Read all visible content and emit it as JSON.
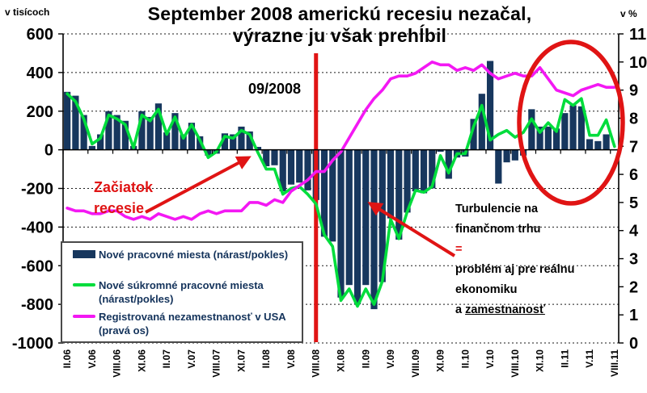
{
  "header": {
    "title_line1": "September 2008 americkú recesiu nezačal,",
    "title_line2": "výrazne ju však prehĺbil"
  },
  "axis_units": {
    "left": "v tisícoch",
    "right": "v %"
  },
  "legend": {
    "items": [
      {
        "label": "Nové pracovné miesta (nárast/pokles)",
        "swatch": "bar",
        "color": "#17375e"
      },
      {
        "label": "Nové súkromné pracovné miesta (nárast/pokles)",
        "swatch": "line",
        "color": "#00dd3c"
      },
      {
        "label": "Registrovaná nezamestnanosť v USA (pravá os)",
        "swatch": "line",
        "color": "#f318f3"
      }
    ]
  },
  "annotations": {
    "event_date": "09/2008",
    "recession_start": "Začiatok recesie",
    "turbulence_line1": "Turbulencie na",
    "turbulence_line2": "finančnom trhu",
    "equals_sign": "=",
    "impact_line1": "problém aj pre reálnu",
    "impact_line2": "ekonomiku",
    "impact_line3_prefix": "a ",
    "impact_line3_underlined": "zamestnanosť"
  },
  "colors": {
    "bar_navy": "#17375e",
    "private_green": "#00dd3c",
    "unemployment_magenta": "#f318f3",
    "annotation_red": "#e01414",
    "legend_text": "#14335b",
    "grid_black": "#1a1a1a",
    "background": "#ffffff"
  },
  "chart_data": {
    "type": "bar",
    "title": "September 2008 americkú recesiu nezačal, výrazne ju však prehĺbil",
    "x_note": "monthly data Feb 2006 (II.06) – Aug 2011 (VIII.11), 67 points; x tick labels every 3 months",
    "tick_labels": [
      "II.06",
      "V.06",
      "VIII.06",
      "XI.06",
      "II.07",
      "V.07",
      "VIII.07",
      "XI.07",
      "II.08",
      "V.08",
      "VIII.08",
      "XI.08",
      "II.09",
      "V.09",
      "VIII.09",
      "XI.09",
      "II.10",
      "V.10",
      "VIII.10",
      "XI.10",
      "II.11",
      "V.11",
      "VIII.11"
    ],
    "left_axis": {
      "label": "v tisícoch",
      "min": -1000,
      "max": 600,
      "ticks": [
        600,
        400,
        200,
        0,
        -200,
        -400,
        -600,
        -800,
        -1000
      ]
    },
    "right_axis": {
      "label": "v %",
      "min": 0,
      "max": 11,
      "ticks": [
        11,
        10,
        9,
        8,
        7,
        6,
        5,
        4,
        3,
        2,
        1,
        0
      ]
    },
    "grid": "dashed horizontal gridlines at left-axis steps of 200; solid zero line with category ticks",
    "legend_position": "bottom-left inside plot",
    "event_line": {
      "label": "09/2008",
      "x_index": 30.5
    },
    "series": [
      {
        "name": "Nové pracovné miesta (nárast/pokles)",
        "type": "bar",
        "axis": "left",
        "color": "#17375e",
        "values": [
          300,
          280,
          180,
          20,
          80,
          200,
          180,
          150,
          20,
          200,
          170,
          240,
          90,
          190,
          80,
          140,
          70,
          -30,
          -20,
          85,
          80,
          120,
          95,
          15,
          -85,
          -80,
          -215,
          -180,
          -170,
          -210,
          -260,
          -450,
          -475,
          -765,
          -700,
          -800,
          -700,
          -825,
          -685,
          -355,
          -465,
          -325,
          -215,
          -225,
          -200,
          -10,
          -150,
          -40,
          -35,
          160,
          290,
          460,
          -175,
          -65,
          -55,
          -30,
          210,
          120,
          120,
          110,
          190,
          230,
          225,
          55,
          45,
          80,
          0
        ]
      },
      {
        "name": "Nové súkromné pracovné miesta (nárast/pokles)",
        "type": "line",
        "axis": "left",
        "color": "#00dd3c",
        "values": [
          290,
          250,
          160,
          30,
          60,
          180,
          160,
          130,
          10,
          180,
          150,
          210,
          80,
          170,
          60,
          130,
          50,
          -40,
          -10,
          70,
          60,
          100,
          80,
          -15,
          -100,
          -100,
          -230,
          -200,
          -190,
          -230,
          -280,
          -440,
          -500,
          -780,
          -720,
          -810,
          -720,
          -800,
          -680,
          -360,
          -460,
          -320,
          -210,
          -220,
          -190,
          -30,
          -120,
          -20,
          -20,
          120,
          230,
          50,
          80,
          100,
          65,
          90,
          160,
          90,
          140,
          95,
          260,
          230,
          265,
          75,
          75,
          155,
          17
        ]
      },
      {
        "name": "Registrovaná nezamestnanosť v USA (pravá os)",
        "type": "line",
        "axis": "right",
        "color": "#f318f3",
        "values": [
          4.8,
          4.7,
          4.7,
          4.6,
          4.6,
          4.7,
          4.7,
          4.5,
          4.4,
          4.5,
          4.4,
          4.6,
          4.5,
          4.4,
          4.5,
          4.4,
          4.6,
          4.7,
          4.6,
          4.7,
          4.7,
          4.7,
          5.0,
          5.0,
          4.9,
          5.1,
          5.0,
          5.4,
          5.6,
          5.8,
          6.1,
          6.1,
          6.5,
          6.8,
          7.3,
          7.8,
          8.3,
          8.7,
          9.0,
          9.4,
          9.5,
          9.5,
          9.6,
          9.8,
          10.0,
          9.9,
          9.9,
          9.7,
          9.8,
          9.7,
          9.9,
          9.6,
          9.4,
          9.5,
          9.6,
          9.5,
          9.5,
          9.8,
          9.4,
          9.0,
          8.9,
          8.8,
          9.0,
          9.1,
          9.2,
          9.1,
          9.1
        ]
      }
    ]
  }
}
